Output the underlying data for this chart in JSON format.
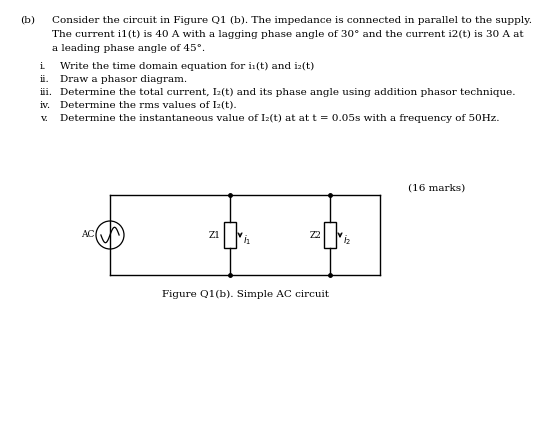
{
  "title_label": "(b)",
  "para_line1": "Consider the circuit in Figure Q1 (b). The impedance is connected in parallel to the supply.",
  "para_line2": "The current i1(t) is 40 A with a lagging phase angle of 30° and the current i2(t) is 30 A at",
  "para_line3": "a leading phase angle of 45°.",
  "item_i_num": "i.",
  "item_i_txt": "Write the time domain equation for i₁(t) and i₂(t)",
  "item_ii_num": "ii.",
  "item_ii_txt": "Draw a phasor diagram.",
  "item_iii_num": "iii.",
  "item_iii_txt": "Determine the total current, I₂(t) and its phase angle using addition phasor technique.",
  "item_iv_num": "iv.",
  "item_iv_txt": "Determine the rms values of I₂(t).",
  "item_v_num": "v.",
  "item_v_txt": "Determine the instantaneous value of I₂(t) at at t = 0.05s with a frequency of 50Hz.",
  "marks_label": "(16 marks)",
  "figure_caption": "Figure Q1(b). Simple AC circuit",
  "bg_color": "#ffffff",
  "text_color": "#000000",
  "font_size": 7.5
}
